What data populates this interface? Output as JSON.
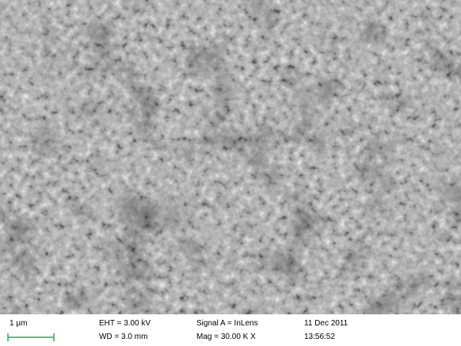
{
  "info_bar": {
    "scale_bar": "1 µm",
    "eht": "EHT = 3.00 kV",
    "wd": "WD = 3.0 mm",
    "signal": "Signal A = InLens",
    "mag": "Mag = 30.00 K X",
    "date": "11 Dec 2011",
    "time": "13:56:52"
  }
}
